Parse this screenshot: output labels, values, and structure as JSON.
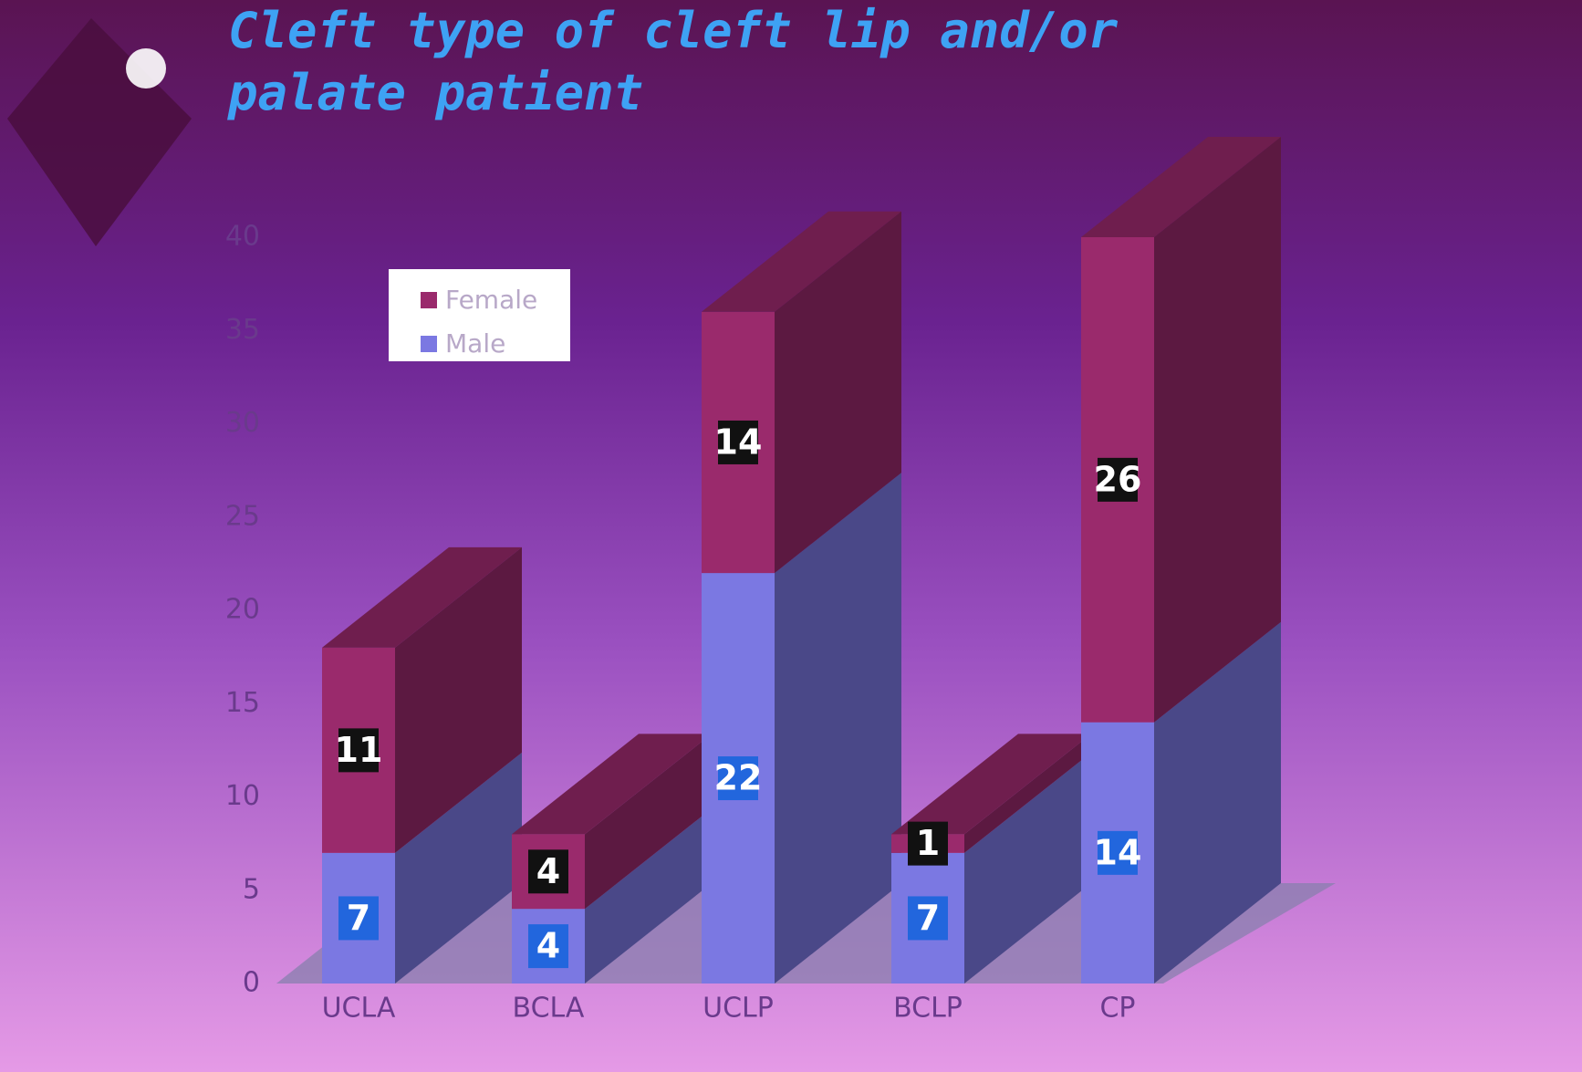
{
  "chart_data": {
    "type": "bar3d_stacked",
    "title": "Cleft type of cleft lip and/or palate patient",
    "categories": [
      "UCLA",
      "BCLA",
      "UCLP",
      "BCLP",
      "CP"
    ],
    "series": [
      {
        "name": "Male",
        "color": "#7b78e2",
        "values": [
          7,
          4,
          22,
          7,
          14
        ]
      },
      {
        "name": "Female",
        "color": "#9a2a6c",
        "values": [
          11,
          4,
          14,
          1,
          26
        ]
      }
    ],
    "ylim": [
      0,
      40
    ],
    "yticks": [
      0,
      5,
      10,
      15,
      20,
      25,
      30,
      35,
      40
    ],
    "legend": "upper-left"
  }
}
